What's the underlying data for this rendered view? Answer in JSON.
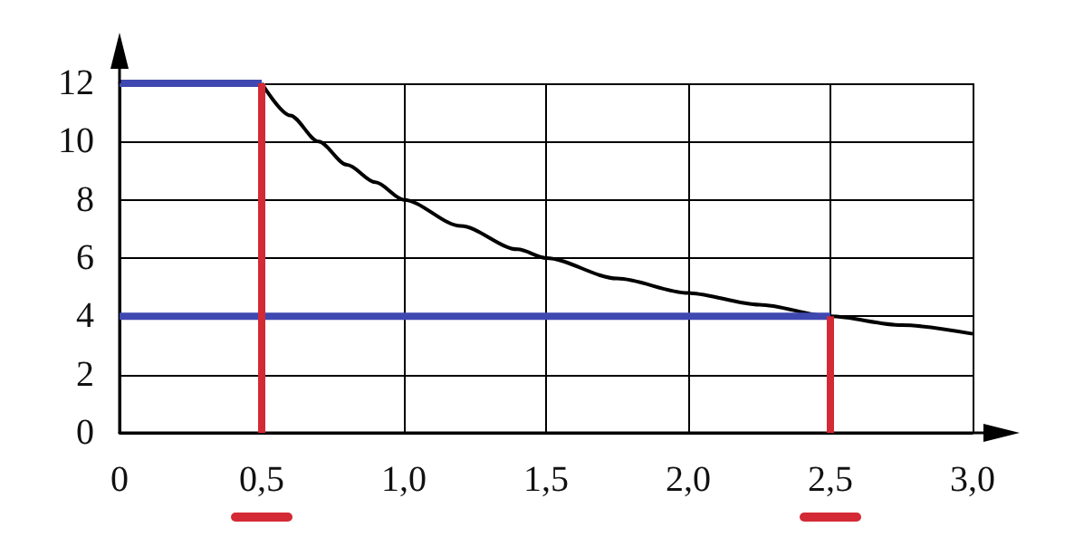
{
  "chart_data": {
    "type": "line",
    "xlim": [
      0,
      3
    ],
    "ylim": [
      0,
      12
    ],
    "xticks": [
      0,
      {
        "value": 0.5,
        "label": "0,5"
      },
      {
        "value": 1,
        "label": "1,0"
      },
      {
        "value": 1.5,
        "label": "1,5"
      },
      {
        "value": 2,
        "label": "2,0"
      },
      {
        "value": 2.5,
        "label": "2,5"
      },
      {
        "value": 3,
        "label": "3,0"
      }
    ],
    "yticks": [
      0,
      2,
      4,
      6,
      8,
      10,
      12
    ],
    "grid": true,
    "marker": "none",
    "line_style": "solid",
    "series": [
      {
        "color": "#000000",
        "x": [
          0.5,
          0.6,
          0.7,
          0.8,
          0.9,
          1.0,
          1.2,
          1.4,
          1.5,
          1.75,
          2.0,
          2.25,
          2.5,
          2.75,
          3.0
        ],
        "values": [
          12,
          10.9,
          10,
          9.2,
          8.6,
          8,
          7.1,
          6.3,
          6,
          5.3,
          4.8,
          4.4,
          4,
          3.7,
          3.4
        ]
      },
      {
        "color": "#3f48b0",
        "x": [
          0,
          0.5
        ],
        "values": [
          12,
          12
        ]
      },
      {
        "color": "#3f48b0",
        "x": [
          0,
          2.5
        ],
        "values": [
          4,
          4
        ]
      },
      {
        "color": "#d42a35",
        "x": [
          0.5,
          0.5
        ],
        "values": [
          0,
          12
        ]
      },
      {
        "color": "#d42a35",
        "x": [
          2.5,
          2.5
        ],
        "values": [
          0,
          4
        ]
      }
    ]
  }
}
